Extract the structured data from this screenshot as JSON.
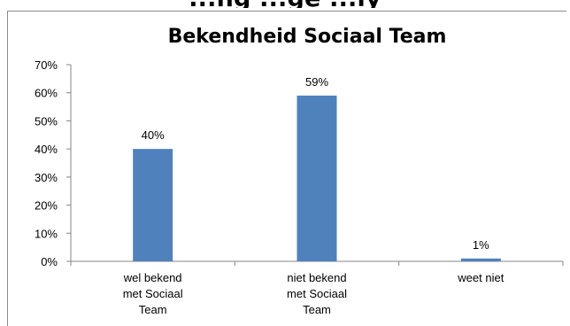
{
  "header_fragment": "...ng ...ge ...ly",
  "chart_data": {
    "type": "bar",
    "title": "Bekendheid Sociaal Team",
    "categories": [
      [
        "wel bekend",
        "met Sociaal",
        "Team"
      ],
      [
        "niet bekend",
        "met Sociaal",
        "Team"
      ],
      [
        "weet niet"
      ]
    ],
    "values": [
      40,
      59,
      1
    ],
    "data_labels": [
      "40%",
      "59%",
      "1%"
    ],
    "ylim": [
      0,
      70
    ],
    "yticks": [
      "0%",
      "10%",
      "20%",
      "30%",
      "40%",
      "50%",
      "60%",
      "70%"
    ],
    "ytick_values": [
      0,
      10,
      20,
      30,
      40,
      50,
      60,
      70
    ],
    "bar_color": "#4f81bd",
    "grid": false,
    "legend": "none"
  }
}
